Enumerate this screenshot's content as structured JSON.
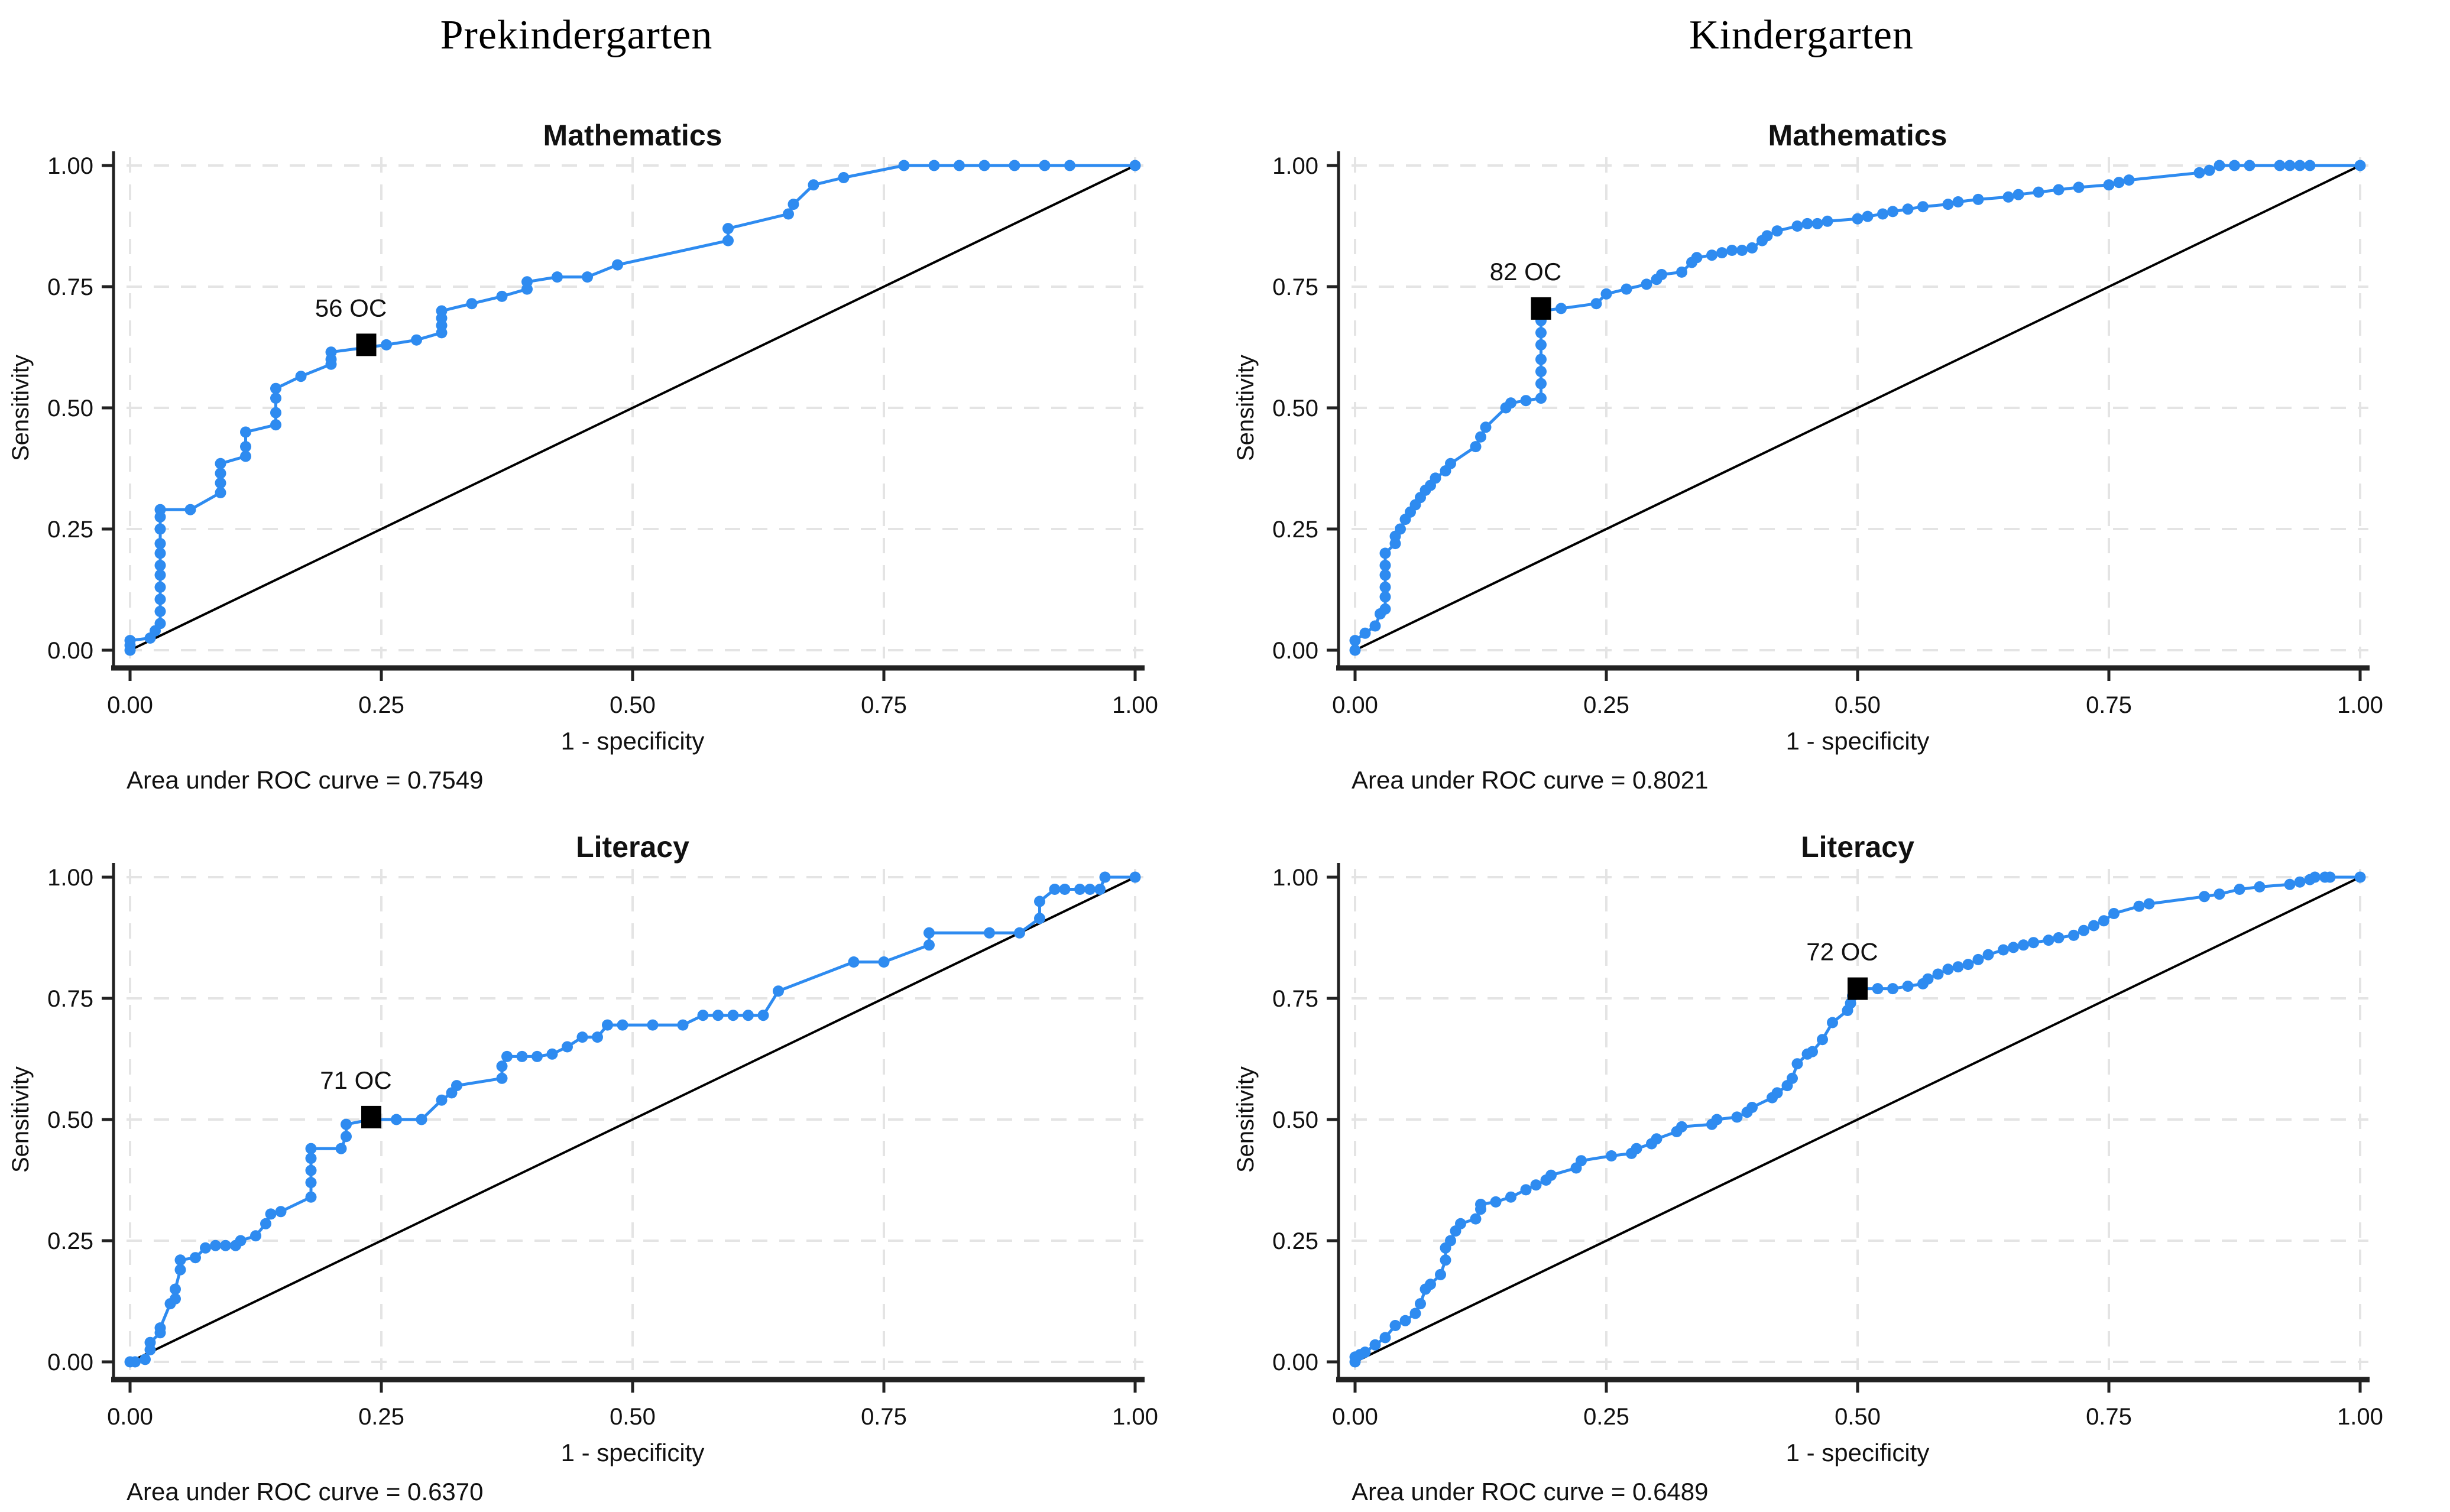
{
  "figure": {
    "background": "#ffffff"
  },
  "columns": [
    {
      "title": "Prekindergarten"
    },
    {
      "title": "Kindergarten"
    }
  ],
  "axes": {
    "xlabel": "1 - specificity",
    "ylabel": "Sensitivity",
    "x_ticks": [
      "0.00",
      "0.25",
      "0.50",
      "0.75",
      "1.00"
    ],
    "y_ticks": [
      "0.00",
      "0.25",
      "0.50",
      "0.75",
      "1.00"
    ]
  },
  "style": {
    "curve_color": "#2E8BF0",
    "reference_color": "#000000",
    "grid_color": "#E4E4E4",
    "axis_color": "#222222",
    "text_color": "#111111",
    "cutpoint_color": "#000000"
  },
  "chart_data": [
    {
      "type": "line",
      "id": "prek-math",
      "column": "Prekindergarten",
      "title": "Mathematics",
      "auc": 0.7549,
      "auc_label": "Area under ROC curve = 0.7549",
      "xlim": [
        0,
        1
      ],
      "ylim": [
        0,
        1
      ],
      "grid": true,
      "reference_line": [
        [
          0,
          0
        ],
        [
          1,
          1
        ]
      ],
      "cutpoint": {
        "x": 0.235,
        "y": 0.63,
        "label": "56 OC"
      },
      "points": [
        [
          0,
          0
        ],
        [
          0,
          0.01
        ],
        [
          0,
          0.02
        ],
        [
          0.02,
          0.025
        ],
        [
          0.025,
          0.04
        ],
        [
          0.03,
          0.055
        ],
        [
          0.03,
          0.08
        ],
        [
          0.03,
          0.105
        ],
        [
          0.03,
          0.13
        ],
        [
          0.03,
          0.155
        ],
        [
          0.03,
          0.175
        ],
        [
          0.03,
          0.2
        ],
        [
          0.03,
          0.22
        ],
        [
          0.03,
          0.25
        ],
        [
          0.03,
          0.275
        ],
        [
          0.03,
          0.29
        ],
        [
          0.06,
          0.29
        ],
        [
          0.09,
          0.325
        ],
        [
          0.09,
          0.345
        ],
        [
          0.09,
          0.365
        ],
        [
          0.09,
          0.385
        ],
        [
          0.115,
          0.4
        ],
        [
          0.115,
          0.42
        ],
        [
          0.115,
          0.45
        ],
        [
          0.145,
          0.465
        ],
        [
          0.145,
          0.49
        ],
        [
          0.145,
          0.52
        ],
        [
          0.145,
          0.54
        ],
        [
          0.17,
          0.565
        ],
        [
          0.2,
          0.59
        ],
        [
          0.2,
          0.6
        ],
        [
          0.2,
          0.615
        ],
        [
          0.255,
          0.63
        ],
        [
          0.285,
          0.64
        ],
        [
          0.31,
          0.655
        ],
        [
          0.31,
          0.67
        ],
        [
          0.31,
          0.685
        ],
        [
          0.31,
          0.7
        ],
        [
          0.34,
          0.715
        ],
        [
          0.37,
          0.73
        ],
        [
          0.395,
          0.745
        ],
        [
          0.395,
          0.76
        ],
        [
          0.425,
          0.77
        ],
        [
          0.455,
          0.77
        ],
        [
          0.485,
          0.795
        ],
        [
          0.595,
          0.845
        ],
        [
          0.595,
          0.87
        ],
        [
          0.655,
          0.9
        ],
        [
          0.66,
          0.92
        ],
        [
          0.68,
          0.96
        ],
        [
          0.71,
          0.975
        ],
        [
          0.77,
          1
        ],
        [
          0.8,
          1
        ],
        [
          0.825,
          1
        ],
        [
          0.85,
          1
        ],
        [
          0.88,
          1
        ],
        [
          0.91,
          1
        ],
        [
          0.935,
          1
        ],
        [
          1,
          1
        ]
      ]
    },
    {
      "type": "line",
      "id": "kg-math",
      "column": "Kindergarten",
      "title": "Mathematics",
      "auc": 0.8021,
      "auc_label": "Area under ROC curve = 0.8021",
      "xlim": [
        0,
        1
      ],
      "ylim": [
        0,
        1
      ],
      "grid": true,
      "reference_line": [
        [
          0,
          0
        ],
        [
          1,
          1
        ]
      ],
      "cutpoint": {
        "x": 0.185,
        "y": 0.705,
        "label": "82 OC"
      },
      "points": [
        [
          0,
          0
        ],
        [
          0,
          0.02
        ],
        [
          0.01,
          0.035
        ],
        [
          0.02,
          0.05
        ],
        [
          0.025,
          0.075
        ],
        [
          0.03,
          0.085
        ],
        [
          0.03,
          0.11
        ],
        [
          0.03,
          0.13
        ],
        [
          0.03,
          0.155
        ],
        [
          0.03,
          0.175
        ],
        [
          0.03,
          0.2
        ],
        [
          0.04,
          0.22
        ],
        [
          0.04,
          0.235
        ],
        [
          0.045,
          0.25
        ],
        [
          0.05,
          0.27
        ],
        [
          0.055,
          0.285
        ],
        [
          0.06,
          0.3
        ],
        [
          0.065,
          0.315
        ],
        [
          0.07,
          0.33
        ],
        [
          0.075,
          0.34
        ],
        [
          0.08,
          0.355
        ],
        [
          0.09,
          0.37
        ],
        [
          0.095,
          0.385
        ],
        [
          0.12,
          0.42
        ],
        [
          0.125,
          0.44
        ],
        [
          0.13,
          0.46
        ],
        [
          0.15,
          0.5
        ],
        [
          0.155,
          0.51
        ],
        [
          0.17,
          0.515
        ],
        [
          0.185,
          0.52
        ],
        [
          0.185,
          0.55
        ],
        [
          0.185,
          0.575
        ],
        [
          0.185,
          0.6
        ],
        [
          0.185,
          0.63
        ],
        [
          0.185,
          0.655
        ],
        [
          0.185,
          0.68
        ],
        [
          0.185,
          0.7
        ],
        [
          0.205,
          0.705
        ],
        [
          0.24,
          0.715
        ],
        [
          0.25,
          0.735
        ],
        [
          0.27,
          0.745
        ],
        [
          0.29,
          0.755
        ],
        [
          0.3,
          0.765
        ],
        [
          0.305,
          0.775
        ],
        [
          0.325,
          0.78
        ],
        [
          0.335,
          0.8
        ],
        [
          0.34,
          0.81
        ],
        [
          0.355,
          0.815
        ],
        [
          0.365,
          0.82
        ],
        [
          0.375,
          0.825
        ],
        [
          0.385,
          0.825
        ],
        [
          0.395,
          0.83
        ],
        [
          0.405,
          0.845
        ],
        [
          0.41,
          0.855
        ],
        [
          0.42,
          0.865
        ],
        [
          0.44,
          0.875
        ],
        [
          0.45,
          0.88
        ],
        [
          0.46,
          0.88
        ],
        [
          0.47,
          0.885
        ],
        [
          0.5,
          0.89
        ],
        [
          0.51,
          0.895
        ],
        [
          0.525,
          0.9
        ],
        [
          0.535,
          0.905
        ],
        [
          0.55,
          0.91
        ],
        [
          0.565,
          0.915
        ],
        [
          0.59,
          0.92
        ],
        [
          0.6,
          0.925
        ],
        [
          0.62,
          0.93
        ],
        [
          0.65,
          0.935
        ],
        [
          0.66,
          0.94
        ],
        [
          0.68,
          0.945
        ],
        [
          0.7,
          0.95
        ],
        [
          0.72,
          0.955
        ],
        [
          0.75,
          0.96
        ],
        [
          0.76,
          0.965
        ],
        [
          0.77,
          0.97
        ],
        [
          0.84,
          0.985
        ],
        [
          0.85,
          0.99
        ],
        [
          0.86,
          1
        ],
        [
          0.875,
          1
        ],
        [
          0.89,
          1
        ],
        [
          0.92,
          1
        ],
        [
          0.93,
          1
        ],
        [
          0.94,
          1
        ],
        [
          0.95,
          1
        ],
        [
          1,
          1
        ]
      ]
    },
    {
      "type": "line",
      "id": "prek-literacy",
      "column": "Prekindergarten",
      "title": "Literacy",
      "auc": 0.637,
      "auc_label": "Area under ROC curve = 0.6370",
      "xlim": [
        0,
        1
      ],
      "ylim": [
        0,
        1
      ],
      "grid": true,
      "reference_line": [
        [
          0,
          0
        ],
        [
          1,
          1
        ]
      ],
      "cutpoint": {
        "x": 0.24,
        "y": 0.505,
        "label": "71 OC"
      },
      "points": [
        [
          0,
          0
        ],
        [
          0.005,
          0
        ],
        [
          0.015,
          0.005
        ],
        [
          0.02,
          0.025
        ],
        [
          0.02,
          0.04
        ],
        [
          0.03,
          0.06
        ],
        [
          0.03,
          0.07
        ],
        [
          0.04,
          0.12
        ],
        [
          0.045,
          0.13
        ],
        [
          0.045,
          0.15
        ],
        [
          0.05,
          0.19
        ],
        [
          0.05,
          0.21
        ],
        [
          0.065,
          0.215
        ],
        [
          0.075,
          0.235
        ],
        [
          0.085,
          0.24
        ],
        [
          0.095,
          0.24
        ],
        [
          0.105,
          0.24
        ],
        [
          0.11,
          0.25
        ],
        [
          0.125,
          0.26
        ],
        [
          0.135,
          0.285
        ],
        [
          0.14,
          0.305
        ],
        [
          0.15,
          0.31
        ],
        [
          0.18,
          0.34
        ],
        [
          0.18,
          0.37
        ],
        [
          0.18,
          0.395
        ],
        [
          0.18,
          0.42
        ],
        [
          0.18,
          0.44
        ],
        [
          0.21,
          0.44
        ],
        [
          0.215,
          0.465
        ],
        [
          0.215,
          0.49
        ],
        [
          0.24,
          0.5
        ],
        [
          0.265,
          0.5
        ],
        [
          0.29,
          0.5
        ],
        [
          0.31,
          0.54
        ],
        [
          0.32,
          0.555
        ],
        [
          0.325,
          0.57
        ],
        [
          0.37,
          0.585
        ],
        [
          0.37,
          0.61
        ],
        [
          0.375,
          0.63
        ],
        [
          0.39,
          0.63
        ],
        [
          0.405,
          0.63
        ],
        [
          0.42,
          0.635
        ],
        [
          0.435,
          0.65
        ],
        [
          0.45,
          0.67
        ],
        [
          0.465,
          0.67
        ],
        [
          0.475,
          0.695
        ],
        [
          0.49,
          0.695
        ],
        [
          0.52,
          0.695
        ],
        [
          0.55,
          0.695
        ],
        [
          0.57,
          0.715
        ],
        [
          0.585,
          0.715
        ],
        [
          0.6,
          0.715
        ],
        [
          0.615,
          0.715
        ],
        [
          0.63,
          0.715
        ],
        [
          0.645,
          0.765
        ],
        [
          0.72,
          0.825
        ],
        [
          0.75,
          0.825
        ],
        [
          0.795,
          0.86
        ],
        [
          0.795,
          0.885
        ],
        [
          0.855,
          0.885
        ],
        [
          0.885,
          0.885
        ],
        [
          0.905,
          0.915
        ],
        [
          0.905,
          0.95
        ],
        [
          0.92,
          0.975
        ],
        [
          0.93,
          0.975
        ],
        [
          0.945,
          0.975
        ],
        [
          0.955,
          0.975
        ],
        [
          0.965,
          0.975
        ],
        [
          0.97,
          1
        ],
        [
          1,
          1
        ]
      ]
    },
    {
      "type": "line",
      "id": "kg-literacy",
      "column": "Kindergarten",
      "title": "Literacy",
      "auc": 0.6489,
      "auc_label": "Area under ROC curve = 0.6489",
      "xlim": [
        0,
        1
      ],
      "ylim": [
        0,
        1
      ],
      "grid": true,
      "reference_line": [
        [
          0,
          0
        ],
        [
          1,
          1
        ]
      ],
      "cutpoint": {
        "x": 0.5,
        "y": 0.77,
        "label": "72 OC"
      },
      "points": [
        [
          0,
          0
        ],
        [
          0,
          0.01
        ],
        [
          0.005,
          0.015
        ],
        [
          0.01,
          0.02
        ],
        [
          0.02,
          0.035
        ],
        [
          0.03,
          0.05
        ],
        [
          0.04,
          0.075
        ],
        [
          0.05,
          0.085
        ],
        [
          0.06,
          0.1
        ],
        [
          0.065,
          0.12
        ],
        [
          0.07,
          0.15
        ],
        [
          0.075,
          0.16
        ],
        [
          0.085,
          0.18
        ],
        [
          0.09,
          0.21
        ],
        [
          0.09,
          0.235
        ],
        [
          0.095,
          0.25
        ],
        [
          0.1,
          0.27
        ],
        [
          0.105,
          0.285
        ],
        [
          0.12,
          0.295
        ],
        [
          0.125,
          0.315
        ],
        [
          0.125,
          0.325
        ],
        [
          0.14,
          0.33
        ],
        [
          0.155,
          0.34
        ],
        [
          0.17,
          0.355
        ],
        [
          0.18,
          0.365
        ],
        [
          0.19,
          0.375
        ],
        [
          0.195,
          0.385
        ],
        [
          0.22,
          0.4
        ],
        [
          0.225,
          0.415
        ],
        [
          0.255,
          0.425
        ],
        [
          0.275,
          0.43
        ],
        [
          0.28,
          0.44
        ],
        [
          0.295,
          0.45
        ],
        [
          0.3,
          0.46
        ],
        [
          0.32,
          0.475
        ],
        [
          0.325,
          0.485
        ],
        [
          0.355,
          0.49
        ],
        [
          0.36,
          0.5
        ],
        [
          0.38,
          0.505
        ],
        [
          0.39,
          0.515
        ],
        [
          0.395,
          0.525
        ],
        [
          0.415,
          0.545
        ],
        [
          0.42,
          0.555
        ],
        [
          0.43,
          0.57
        ],
        [
          0.435,
          0.585
        ],
        [
          0.44,
          0.615
        ],
        [
          0.45,
          0.635
        ],
        [
          0.455,
          0.64
        ],
        [
          0.465,
          0.665
        ],
        [
          0.475,
          0.7
        ],
        [
          0.49,
          0.725
        ],
        [
          0.493,
          0.74
        ],
        [
          0.495,
          0.755
        ],
        [
          0.5,
          0.77
        ],
        [
          0.52,
          0.77
        ],
        [
          0.535,
          0.77
        ],
        [
          0.55,
          0.775
        ],
        [
          0.565,
          0.78
        ],
        [
          0.57,
          0.79
        ],
        [
          0.58,
          0.8
        ],
        [
          0.59,
          0.81
        ],
        [
          0.6,
          0.815
        ],
        [
          0.61,
          0.82
        ],
        [
          0.62,
          0.83
        ],
        [
          0.63,
          0.84
        ],
        [
          0.645,
          0.85
        ],
        [
          0.655,
          0.855
        ],
        [
          0.665,
          0.86
        ],
        [
          0.675,
          0.865
        ],
        [
          0.69,
          0.87
        ],
        [
          0.7,
          0.875
        ],
        [
          0.715,
          0.88
        ],
        [
          0.725,
          0.89
        ],
        [
          0.735,
          0.9
        ],
        [
          0.745,
          0.91
        ],
        [
          0.755,
          0.925
        ],
        [
          0.78,
          0.94
        ],
        [
          0.79,
          0.945
        ],
        [
          0.845,
          0.96
        ],
        [
          0.86,
          0.965
        ],
        [
          0.88,
          0.975
        ],
        [
          0.9,
          0.98
        ],
        [
          0.93,
          0.985
        ],
        [
          0.94,
          0.99
        ],
        [
          0.95,
          0.995
        ],
        [
          0.955,
          1
        ],
        [
          0.965,
          1
        ],
        [
          0.97,
          1
        ],
        [
          1,
          1
        ]
      ]
    }
  ]
}
